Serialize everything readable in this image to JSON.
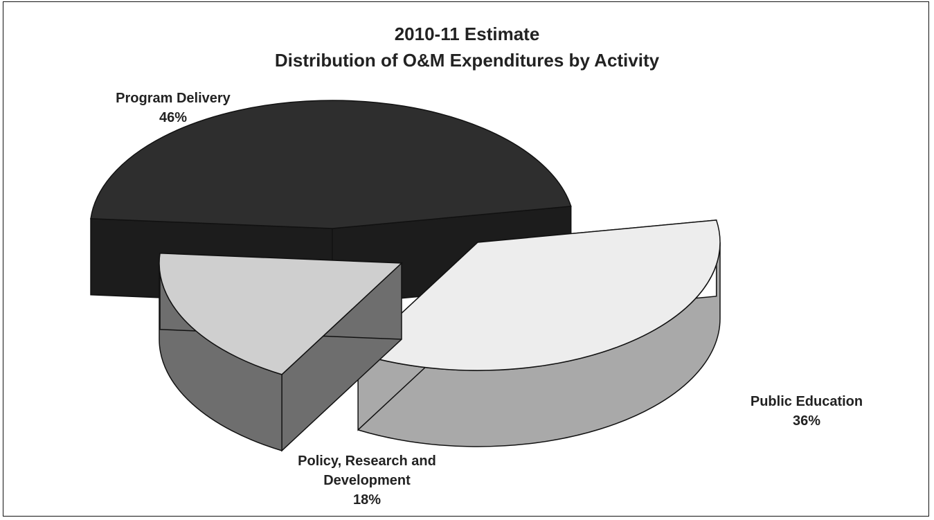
{
  "chart_data": {
    "type": "pie",
    "title": "2010-11 Estimate",
    "subtitle": "Distribution of O&M Expenditures by Activity",
    "slices": [
      {
        "label": "Program Delivery",
        "value": 46,
        "value_label": "46%",
        "top_color": "#2e2e2e",
        "side_color": "#1c1c1c"
      },
      {
        "label": "Public Education",
        "value": 36,
        "value_label": "36%",
        "top_color": "#ededed",
        "side_color": "#a9a9a9"
      },
      {
        "label": "Policy, Research and",
        "label_line2": "Development",
        "value": 18,
        "value_label": "18%",
        "top_color": "#cfcfcf",
        "side_color": "#6e6e6e"
      }
    ],
    "legend": "none"
  }
}
